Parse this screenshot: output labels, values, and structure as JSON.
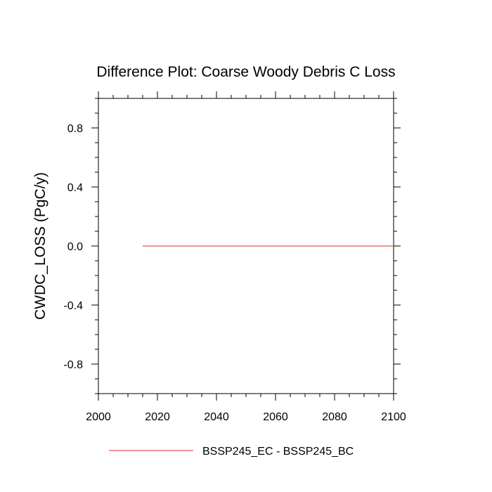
{
  "chart_data": {
    "type": "line",
    "title": "Difference Plot: Coarse Woody Debris C Loss",
    "xlabel": "",
    "ylabel": "CWDC_LOSS  (PgC/y)",
    "xlim": [
      2000,
      2100
    ],
    "ylim": [
      -1.0,
      1.0
    ],
    "xticks": [
      2000,
      2020,
      2040,
      2060,
      2080,
      2100
    ],
    "xtick_labels": [
      "2000",
      "2020",
      "2040",
      "2060",
      "2080",
      "2100"
    ],
    "yticks": [
      -0.8,
      -0.4,
      0.0,
      0.4,
      0.8
    ],
    "ytick_labels": [
      "-0.8",
      "-0.4",
      "0.0",
      "0.4",
      "0.8"
    ],
    "grid": false,
    "legend_position": "bottom",
    "series": [
      {
        "name": "BSSP245_EC - BSSP245_BC",
        "color": "#e8746c",
        "x": [
          2015,
          2100
        ],
        "y": [
          0.0,
          0.0
        ]
      }
    ]
  }
}
